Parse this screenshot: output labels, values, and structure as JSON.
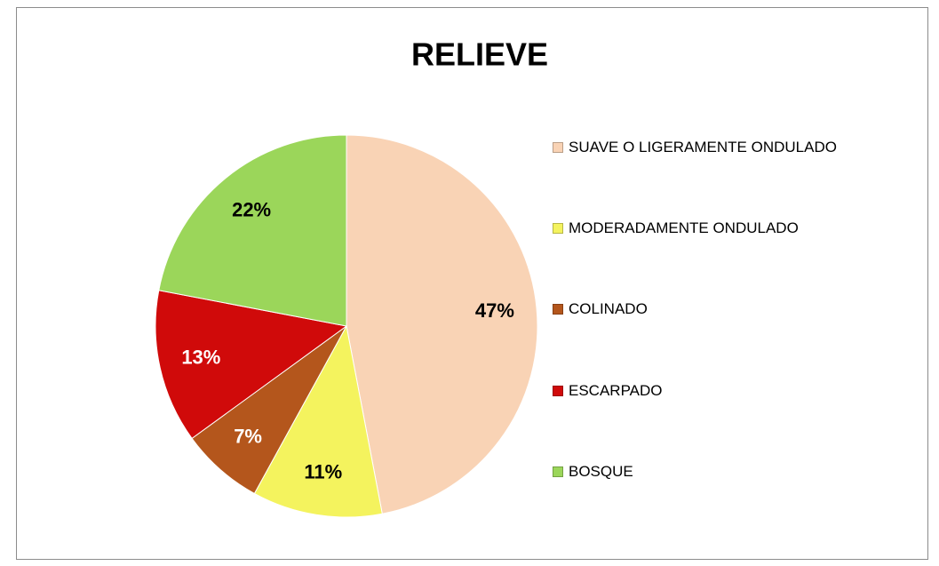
{
  "chart_data": {
    "type": "pie",
    "title": "RELIEVE",
    "categories": [
      "SUAVE O LIGERAMENTE ONDULADO",
      "MODERADAMENTE ONDULADO",
      "COLINADO",
      "ESCARPADO",
      "BOSQUE"
    ],
    "values": [
      47,
      11,
      7,
      13,
      22
    ],
    "value_labels": [
      "47%",
      "11%",
      "7%",
      "13%",
      "22%"
    ],
    "colors": [
      "#f9d3b5",
      "#f4f35e",
      "#b4561c",
      "#d00a0a",
      "#9bd65a"
    ],
    "legend": "right"
  }
}
